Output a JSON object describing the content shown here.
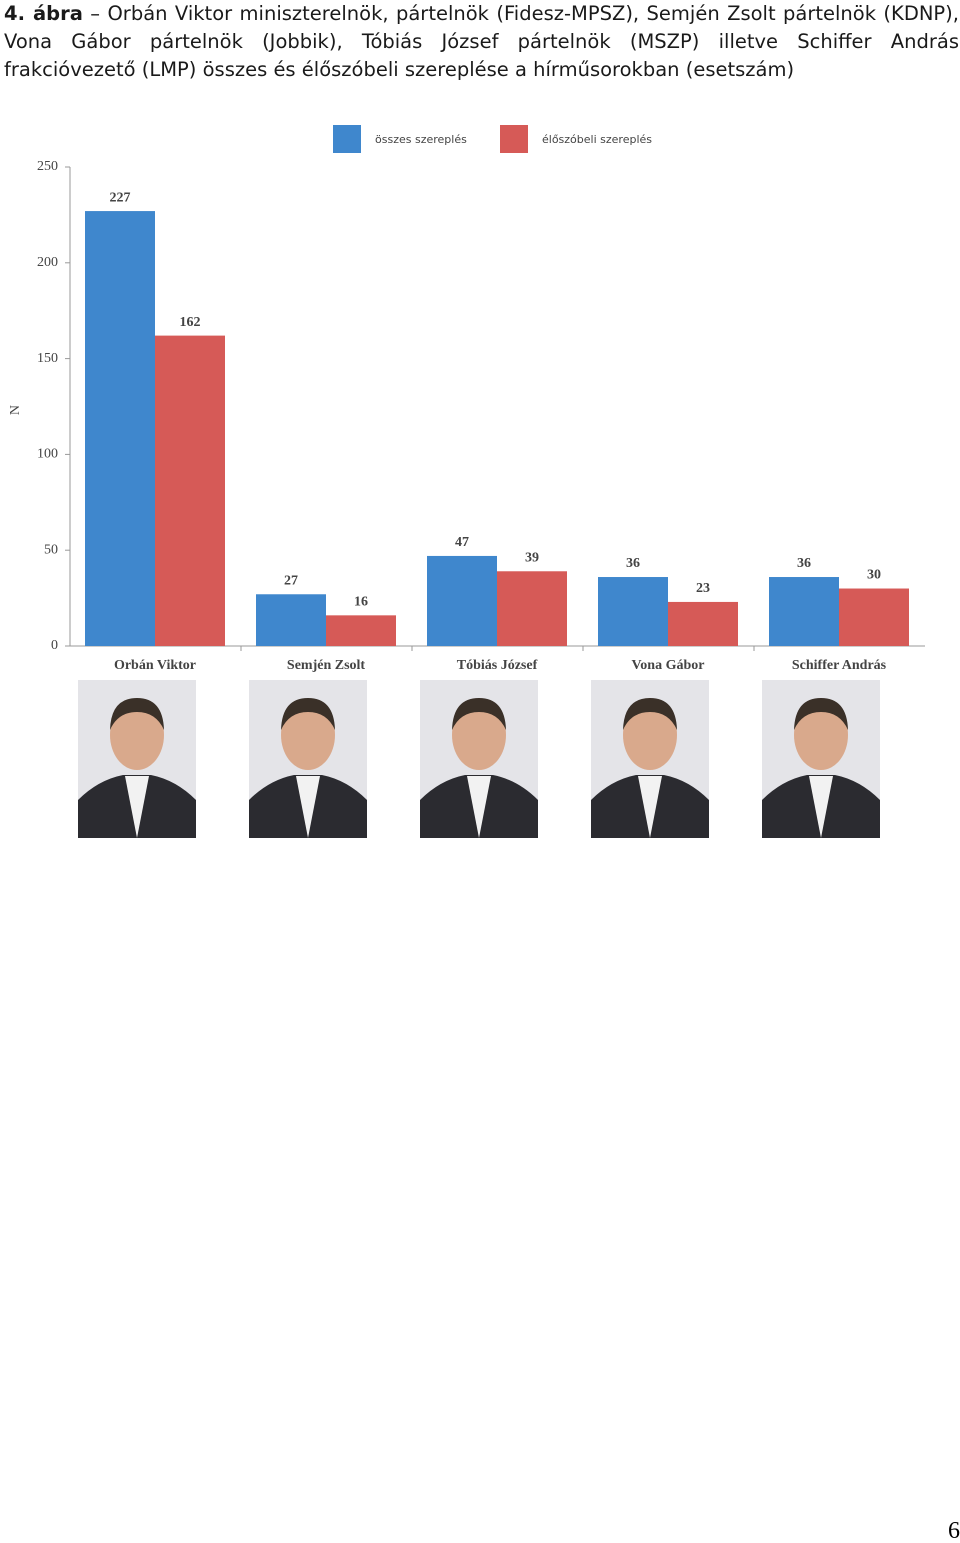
{
  "caption": {
    "label": "4. ábra",
    "text": "– Orbán Viktor miniszterelnök, pártelnök (Fidesz-MPSZ), Semjén Zsolt pártelnök (KDNP), Vona Gábor pártelnök (Jobbik), Tóbiás József pártelnök (MSZP) illetve Schiffer András frakcióvezető (LMP) összes és élőszóbeli szereplése a hírműsorokban (esetszám)"
  },
  "chart_data": {
    "type": "bar",
    "y_label": "N",
    "categories": [
      "Orbán Viktor",
      "Semjén Zsolt",
      "Tóbiás József",
      "Vona Gábor",
      "Schiffer András"
    ],
    "series": [
      {
        "name": "összes szereplés",
        "color": "#3f87cd",
        "values": [
          227,
          27,
          47,
          36,
          36
        ]
      },
      {
        "name": "élőszóbeli szereplés",
        "color": "#d65a57",
        "values": [
          162,
          16,
          39,
          23,
          30
        ]
      }
    ],
    "ylim": [
      0,
      250
    ],
    "yticks": [
      0,
      50,
      100,
      150,
      200,
      250
    ],
    "legend": "top"
  },
  "page_number": "6"
}
